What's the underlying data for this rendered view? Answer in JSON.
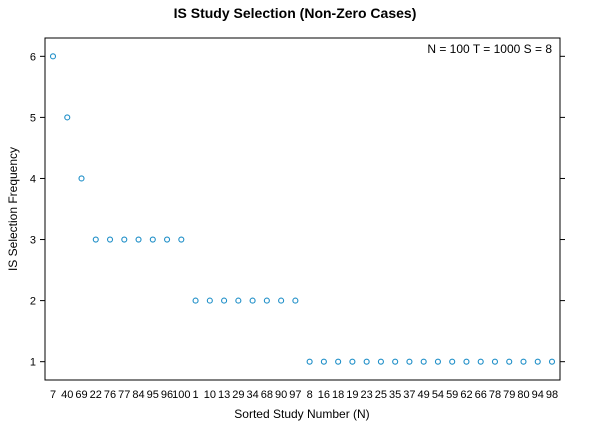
{
  "chart_data": {
    "type": "scatter",
    "title": "IS Study Selection (Non-Zero Cases)",
    "xlabel": "Sorted Study Number (N)",
    "ylabel": "IS Selection Frequency",
    "annotation": "N = 100  T = 1000  S = 8",
    "categories": [
      "7",
      "40",
      "69",
      "22",
      "76",
      "77",
      "84",
      "95",
      "96",
      "100",
      "1",
      "10",
      "13",
      "29",
      "34",
      "68",
      "90",
      "97",
      "8",
      "16",
      "18",
      "19",
      "23",
      "25",
      "35",
      "37",
      "49",
      "54",
      "59",
      "62",
      "66",
      "78",
      "79",
      "80",
      "94",
      "98"
    ],
    "values": [
      6,
      5,
      4,
      3,
      3,
      3,
      3,
      3,
      3,
      3,
      2,
      2,
      2,
      2,
      2,
      2,
      2,
      2,
      1,
      1,
      1,
      1,
      1,
      1,
      1,
      1,
      1,
      1,
      1,
      1,
      1,
      1,
      1,
      1,
      1,
      1
    ],
    "ylim": [
      0.7,
      6.3
    ],
    "yticks": [
      1,
      2,
      3,
      4,
      5,
      6
    ],
    "marker_color": "#1f8fc8",
    "grid": false,
    "legend": "none"
  }
}
